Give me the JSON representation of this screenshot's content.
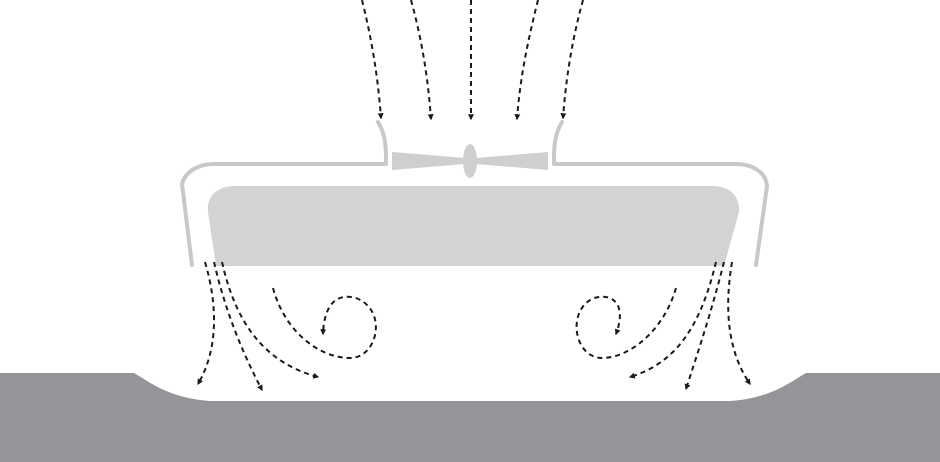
{
  "diagram": {
    "kind": "hovercraft-air-cushion",
    "colors": {
      "background": "#ffffff",
      "ground": "#939598",
      "hull_outline": "#c8c8c8",
      "cabin": "#d1d3d4",
      "fan": "#cfcfcf",
      "airflow_arrows": "#1a1a1a"
    },
    "components": [
      "ground",
      "hull-skirt",
      "cabin",
      "lift-fan",
      "intake-airflow",
      "cushion-airflow"
    ]
  }
}
